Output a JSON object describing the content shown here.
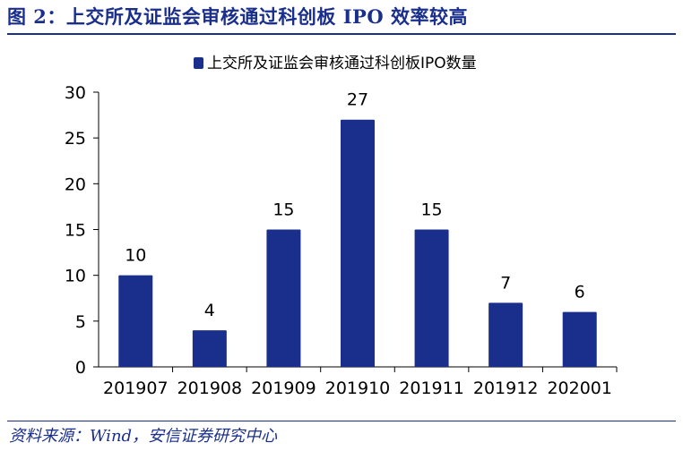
{
  "figure_title": "图 2：上交所及证监会审核通过科创板 IPO 效率较高",
  "source": "资料来源：Wind，安信证券研究中心",
  "colors": {
    "bar": "#1a2f8c",
    "accent": "#1a2f8c",
    "text": "#000000"
  },
  "chart_data": {
    "type": "bar",
    "title": "",
    "xlabel": "",
    "ylabel": "",
    "categories": [
      "201907",
      "201908",
      "201909",
      "201910",
      "201911",
      "201912",
      "202001"
    ],
    "series": [
      {
        "name": "上交所及证监会审核通过科创板IPO数量",
        "values": [
          10,
          4,
          15,
          27,
          15,
          7,
          6
        ]
      }
    ],
    "ylim": [
      0,
      30
    ],
    "yticks": [
      0,
      5,
      10,
      15,
      20,
      25,
      30
    ],
    "grid": false,
    "legend": "top-center",
    "data_labels": true
  }
}
